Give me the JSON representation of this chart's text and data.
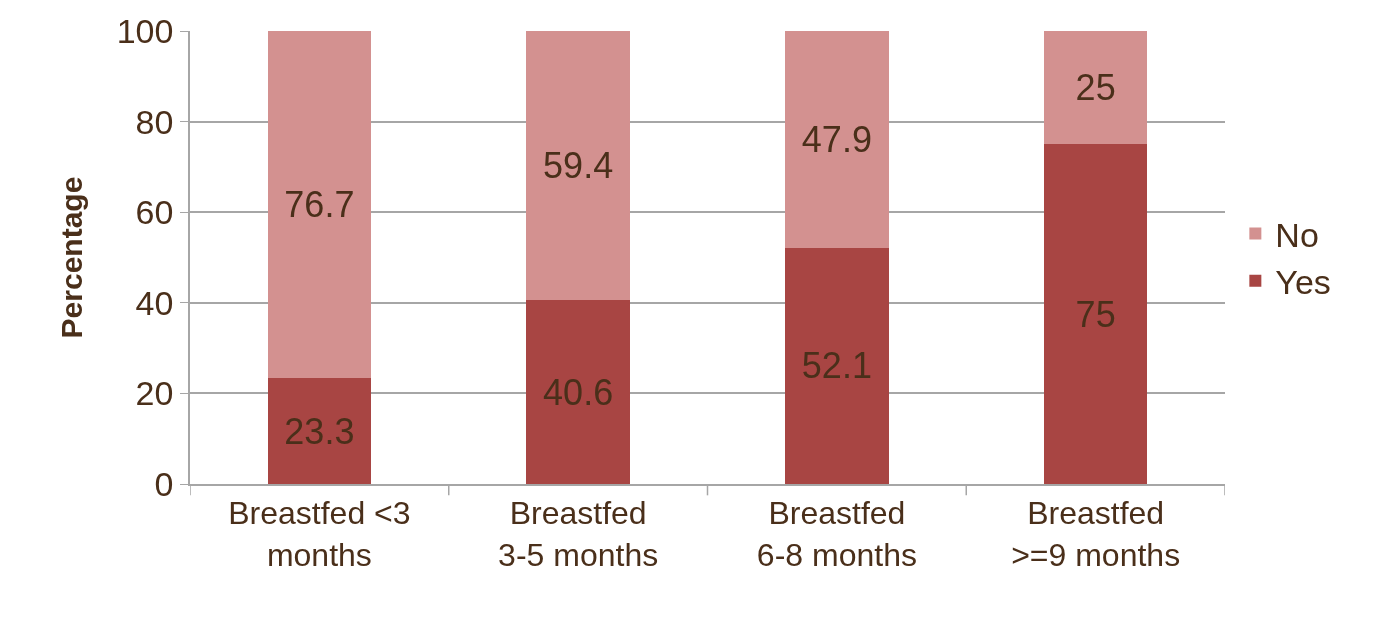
{
  "chart_data": {
    "type": "bar",
    "stacked": true,
    "ylabel": "Percentage",
    "categories": [
      "Breastfed <3\nmonths",
      "Breastfed\n3-5 months",
      "Breastfed\n6-8 months",
      "Breastfed\n>=9 months"
    ],
    "series": [
      {
        "name": "Yes",
        "color": "#a84543",
        "values": [
          23.3,
          40.6,
          52.1,
          75
        ]
      },
      {
        "name": "No",
        "color": "#d39190",
        "values": [
          76.7,
          59.4,
          47.9,
          25
        ]
      }
    ],
    "ylim": [
      0,
      100
    ],
    "yticks": [
      0,
      20,
      40,
      60,
      80,
      100
    ],
    "grid": "y",
    "legend": "right",
    "data_labels": true
  }
}
